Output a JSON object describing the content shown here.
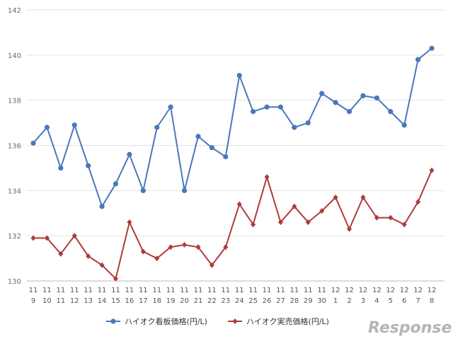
{
  "chart_data": {
    "type": "line",
    "title": "",
    "xlabel": "",
    "ylabel": "",
    "ylim": [
      130,
      142
    ],
    "yticks": [
      130,
      132,
      134,
      136,
      138,
      140,
      142
    ],
    "grid": true,
    "legend_position": "bottom",
    "categories": [
      [
        "11",
        "9"
      ],
      [
        "11",
        "10"
      ],
      [
        "11",
        "11"
      ],
      [
        "11",
        "12"
      ],
      [
        "11",
        "13"
      ],
      [
        "11",
        "14"
      ],
      [
        "11",
        "15"
      ],
      [
        "11",
        "16"
      ],
      [
        "11",
        "17"
      ],
      [
        "11",
        "18"
      ],
      [
        "11",
        "19"
      ],
      [
        "11",
        "20"
      ],
      [
        "11",
        "21"
      ],
      [
        "11",
        "22"
      ],
      [
        "11",
        "23"
      ],
      [
        "11",
        "24"
      ],
      [
        "11",
        "25"
      ],
      [
        "11",
        "26"
      ],
      [
        "11",
        "27"
      ],
      [
        "11",
        "28"
      ],
      [
        "11",
        "29"
      ],
      [
        "11",
        "30"
      ],
      [
        "12",
        "1"
      ],
      [
        "12",
        "2"
      ],
      [
        "12",
        "3"
      ],
      [
        "12",
        "4"
      ],
      [
        "12",
        "5"
      ],
      [
        "12",
        "6"
      ],
      [
        "12",
        "7"
      ],
      [
        "12",
        "8"
      ]
    ],
    "series": [
      {
        "name": "ハイオク看板価格(円/L)",
        "color": "#4a78b8",
        "marker": "circle",
        "values": [
          136.1,
          136.8,
          135.0,
          136.9,
          135.1,
          133.3,
          134.3,
          135.6,
          134.0,
          136.8,
          137.7,
          134.0,
          136.4,
          135.9,
          135.5,
          139.1,
          137.5,
          137.7,
          137.7,
          136.8,
          137.0,
          138.3,
          137.9,
          137.5,
          138.2,
          138.1,
          137.5,
          136.9,
          139.8,
          140.3
        ]
      },
      {
        "name": "ハイオク実売価格(円/L)",
        "color": "#b03a3a",
        "marker": "diamond",
        "values": [
          131.9,
          131.9,
          131.2,
          132.0,
          131.1,
          130.7,
          130.1,
          132.6,
          131.3,
          131.0,
          131.5,
          131.6,
          131.5,
          130.7,
          131.5,
          133.4,
          132.5,
          134.6,
          132.6,
          133.3,
          132.6,
          133.1,
          133.7,
          132.3,
          133.7,
          132.8,
          132.8,
          132.5,
          133.5,
          134.9
        ]
      }
    ]
  },
  "watermark": "Response."
}
